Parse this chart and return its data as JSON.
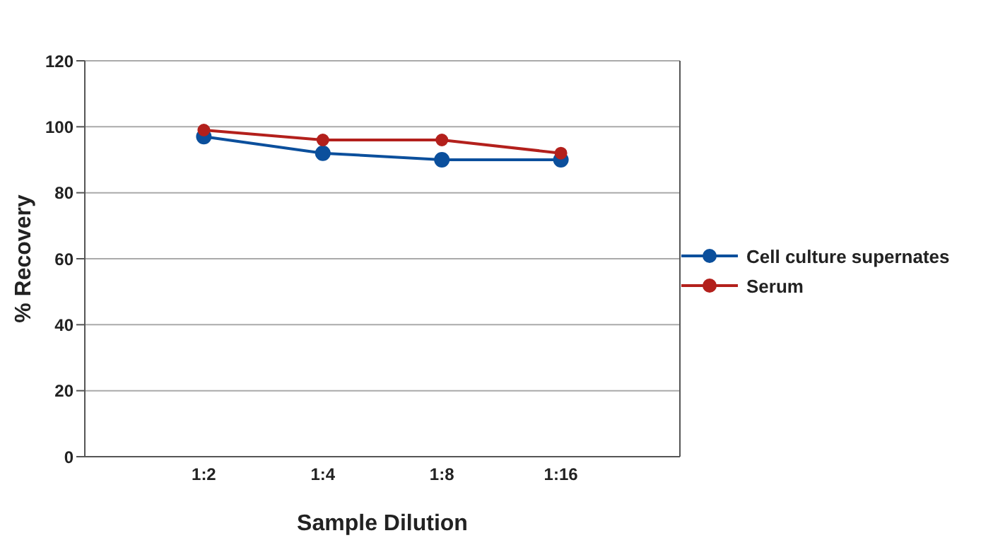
{
  "chart_data": {
    "type": "line",
    "xlabel": "Sample Dilution",
    "ylabel": "% Recovery",
    "categories": [
      "1:2",
      "1:4",
      "1:8",
      "1:16"
    ],
    "series": [
      {
        "name": "Cell culture supernates",
        "color": "#0b4f9c",
        "values": [
          97,
          92,
          90,
          90
        ]
      },
      {
        "name": "Serum",
        "color": "#b3201c",
        "values": [
          99,
          96,
          96,
          92
        ]
      }
    ],
    "ylim": [
      0,
      120
    ],
    "yticks": [
      0,
      20,
      40,
      60,
      80,
      100,
      120
    ],
    "grid": "y",
    "legend": "right",
    "marker": "circle",
    "line_style": "solid"
  }
}
